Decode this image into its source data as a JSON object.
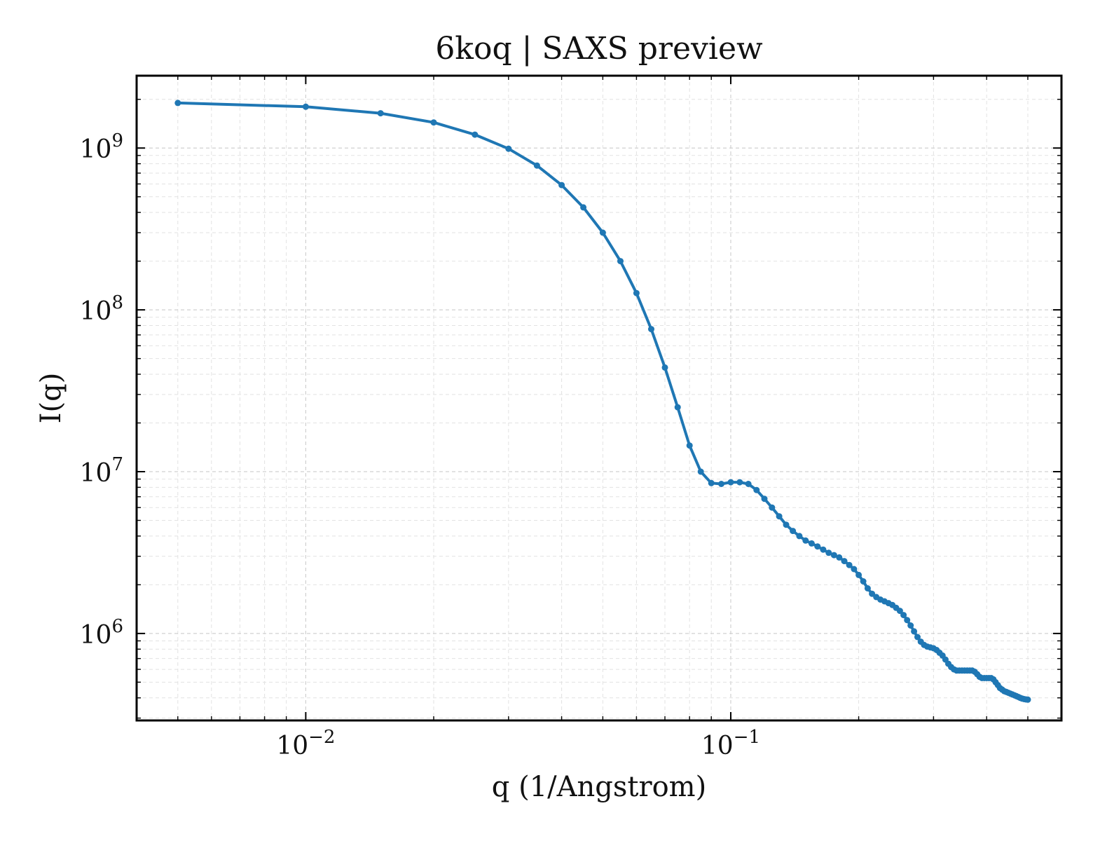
{
  "chart_data": {
    "type": "line",
    "title": "6koq | SAXS preview",
    "xlabel": "q (1/Angstrom)",
    "ylabel": "I(q)",
    "xscale": "log",
    "yscale": "log",
    "xlim": [
      0.004,
      0.6
    ],
    "ylim": [
      290000,
      2800000000
    ],
    "grid": "on (major and minor, dashed)",
    "legend": "none",
    "colors": {
      "series": "#1f77b4",
      "grid": "#d0d0d0",
      "axes": "#000000"
    },
    "x_ticks": [
      {
        "value": 0.01,
        "base": "10",
        "exp": "−2"
      },
      {
        "value": 0.1,
        "base": "10",
        "exp": "−1"
      }
    ],
    "y_ticks": [
      {
        "value": 1000000,
        "base": "10",
        "exp": "6"
      },
      {
        "value": 10000000,
        "base": "10",
        "exp": "7"
      },
      {
        "value": 100000000,
        "base": "10",
        "exp": "8"
      },
      {
        "value": 1000000000,
        "base": "10",
        "exp": "9"
      }
    ],
    "series": [
      {
        "x": [
          0.005,
          0.01,
          0.015,
          0.02,
          0.025,
          0.03,
          0.035,
          0.04,
          0.045,
          0.05,
          0.055,
          0.06,
          0.065,
          0.07,
          0.075,
          0.08,
          0.085,
          0.09,
          0.095,
          0.1,
          0.105,
          0.11,
          0.115,
          0.12,
          0.125,
          0.13,
          0.135,
          0.14,
          0.145,
          0.15,
          0.155,
          0.16,
          0.165,
          0.17,
          0.175,
          0.18,
          0.185,
          0.19,
          0.195,
          0.2,
          0.205,
          0.21,
          0.215,
          0.22,
          0.225,
          0.23,
          0.235,
          0.24,
          0.245,
          0.25,
          0.255,
          0.26,
          0.265,
          0.27,
          0.275,
          0.28,
          0.285,
          0.29,
          0.295,
          0.3,
          0.305,
          0.31,
          0.315,
          0.32,
          0.325,
          0.33,
          0.335,
          0.34,
          0.345,
          0.35,
          0.355,
          0.36,
          0.365,
          0.37,
          0.375,
          0.38,
          0.385,
          0.39,
          0.395,
          0.4,
          0.405,
          0.41,
          0.415,
          0.42,
          0.425,
          0.43,
          0.435,
          0.44,
          0.445,
          0.45,
          0.455,
          0.46,
          0.465,
          0.47,
          0.475,
          0.48,
          0.485,
          0.49,
          0.495,
          0.5
        ],
        "y": [
          1900000000,
          1800000000,
          1640000000,
          1440000000,
          1210000000,
          990000000,
          780000000,
          590000000,
          430000000,
          300000000,
          200000000,
          127000000,
          76000000,
          44000000,
          25000000,
          14500000,
          10000000,
          8500000,
          8400000,
          8600000,
          8600000,
          8400000,
          7700000,
          6800000,
          6000000,
          5300000,
          4700000,
          4300000,
          4000000,
          3750000,
          3600000,
          3450000,
          3300000,
          3150000,
          3050000,
          2950000,
          2800000,
          2650000,
          2500000,
          2300000,
          2100000,
          1900000,
          1760000,
          1680000,
          1620000,
          1580000,
          1540000,
          1500000,
          1440000,
          1380000,
          1300000,
          1210000,
          1120000,
          1030000,
          950000,
          890000,
          850000,
          830000,
          820000,
          810000,
          790000,
          760000,
          730000,
          690000,
          650000,
          620000,
          600000,
          590000,
          590000,
          590000,
          590000,
          590000,
          590000,
          590000,
          580000,
          560000,
          540000,
          530000,
          530000,
          530000,
          530000,
          530000,
          520000,
          500000,
          480000,
          460000,
          450000,
          440000,
          435000,
          430000,
          425000,
          420000,
          415000,
          410000,
          405000,
          400000,
          396000,
          393000,
          391000,
          390000
        ]
      }
    ]
  }
}
